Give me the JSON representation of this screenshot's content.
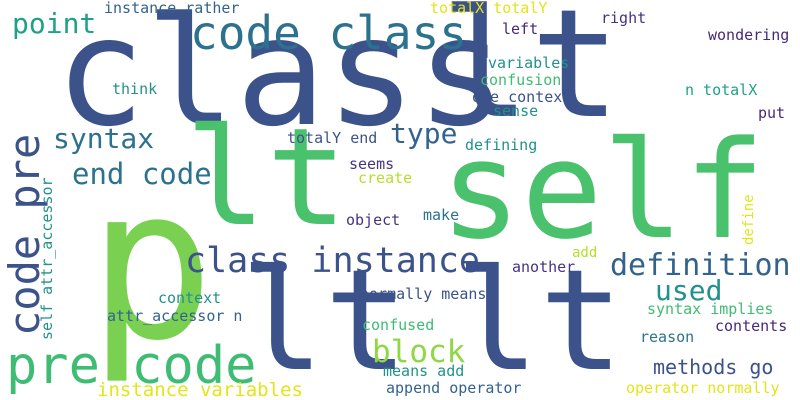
{
  "palette": {
    "background": "#ffffff",
    "navy": "#3b528b",
    "indigo": "#46337e",
    "deep_purple": "#482878",
    "blue": "#33638d",
    "teal_blue": "#2c728e",
    "teal": "#21918c",
    "sea_green": "#1fa187",
    "green": "#3fbc73",
    "emerald": "#4ac16d",
    "lime": "#7ad151",
    "bright_lime": "#8fd744",
    "yellow_green": "#b5de2b",
    "yellow": "#e4e419"
  },
  "words": [
    {
      "text": "class",
      "color": "#3b528b"
    },
    {
      "text": "lt",
      "color": "#3b528b"
    },
    {
      "text": "self",
      "color": "#4ac16d"
    },
    {
      "text": "p",
      "color": "#7ad151"
    },
    {
      "text": "lt",
      "color": "#4ac16d"
    },
    {
      "text": "lt",
      "color": "#3b528b"
    },
    {
      "text": "lt",
      "color": "#3b528b"
    },
    {
      "text": "code class",
      "color": "#2c728e"
    },
    {
      "text": "pre code",
      "color": "#3fbc73"
    },
    {
      "text": "code pre",
      "color": "#3b528b"
    },
    {
      "text": "class instance",
      "color": "#3b528b"
    },
    {
      "text": "definition",
      "color": "#33638d"
    },
    {
      "text": "block",
      "color": "#8fd744"
    },
    {
      "text": "point",
      "color": "#1fa187"
    },
    {
      "text": "end code",
      "color": "#2c728e"
    },
    {
      "text": "syntax",
      "color": "#2c728e"
    },
    {
      "text": "type",
      "color": "#33638d"
    },
    {
      "text": "used",
      "color": "#21918c"
    },
    {
      "text": "methods go",
      "color": "#3b528b"
    },
    {
      "text": "instance variables",
      "color": "#e4e419"
    },
    {
      "text": "instance rather",
      "color": "#33638d"
    },
    {
      "text": "totalX totalY",
      "color": "#e4e419"
    },
    {
      "text": "right",
      "color": "#46337e"
    },
    {
      "text": "left",
      "color": "#482878"
    },
    {
      "text": "wondering",
      "color": "#482878"
    },
    {
      "text": "variables",
      "color": "#21918c"
    },
    {
      "text": "confusion",
      "color": "#3fbc73"
    },
    {
      "text": "think",
      "color": "#21918c"
    },
    {
      "text": "one context",
      "color": "#3b528b"
    },
    {
      "text": "n totalX",
      "color": "#1fa187"
    },
    {
      "text": "sense",
      "color": "#21918c"
    },
    {
      "text": "put",
      "color": "#482878"
    },
    {
      "text": "totalY end",
      "color": "#3b528b"
    },
    {
      "text": "defining",
      "color": "#21918c"
    },
    {
      "text": "seems",
      "color": "#46337e"
    },
    {
      "text": "create",
      "color": "#b5de2b"
    },
    {
      "text": "make",
      "color": "#2c728e"
    },
    {
      "text": "object",
      "color": "#46337e"
    },
    {
      "text": "add",
      "color": "#b5de2b"
    },
    {
      "text": "another",
      "color": "#46337e"
    },
    {
      "text": "context",
      "color": "#21918c"
    },
    {
      "text": "normally means",
      "color": "#3b528b"
    },
    {
      "text": "attr_accessor n",
      "color": "#33638d"
    },
    {
      "text": "syntax implies",
      "color": "#3fbc73"
    },
    {
      "text": "confused",
      "color": "#3fbc73"
    },
    {
      "text": "contents",
      "color": "#482878"
    },
    {
      "text": "reason",
      "color": "#2c728e"
    },
    {
      "text": "means add",
      "color": "#21918c"
    },
    {
      "text": "append operator",
      "color": "#33638d"
    },
    {
      "text": "operator normally",
      "color": "#e4e419"
    },
    {
      "text": "self attr_accessor",
      "color": "#21918c"
    },
    {
      "text": "define",
      "color": "#e4e419"
    }
  ]
}
